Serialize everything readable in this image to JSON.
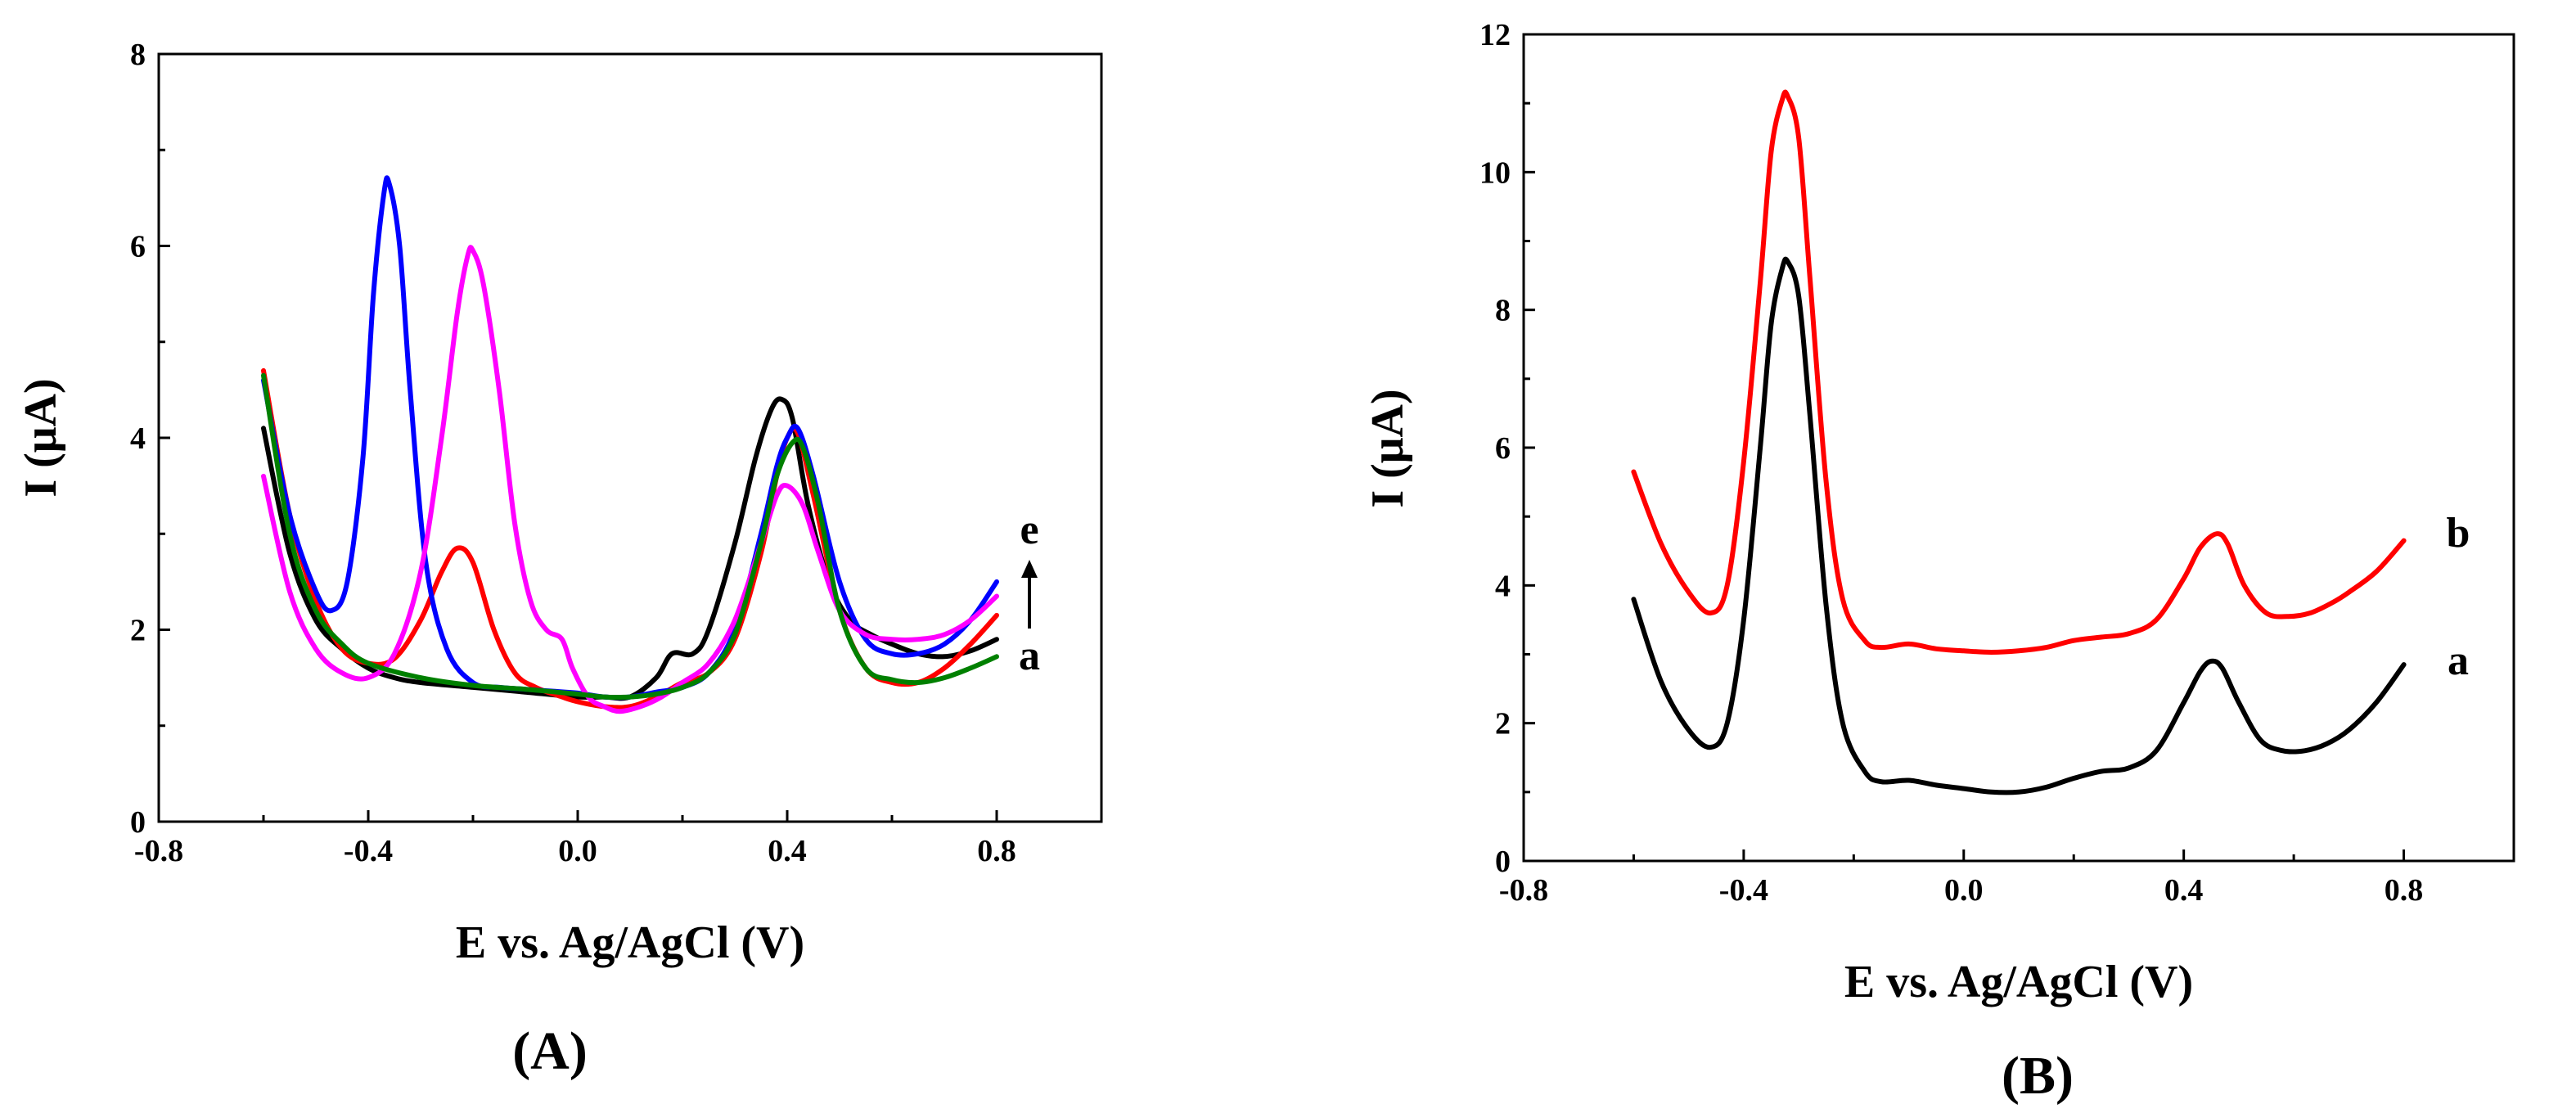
{
  "chart_data": [
    {
      "type": "line",
      "panel_label": "(A)",
      "xlabel": "E vs. Ag/AgCl (V)",
      "ylabel": "I (μA)",
      "xlim": [
        -0.8,
        1.0
      ],
      "ylim": [
        0,
        8
      ],
      "xticks": [
        -0.8,
        -0.4,
        0.0,
        0.4,
        0.8
      ],
      "xtick_labels": [
        "-0.8",
        "-0.4",
        "0.0",
        "0.4",
        "0.8"
      ],
      "yticks": [
        0,
        2,
        4,
        6,
        8
      ],
      "ytick_labels": [
        "0",
        "2",
        "4",
        "6",
        "8"
      ],
      "annotation": {
        "top": "e",
        "bottom": "a"
      },
      "colors": {
        "black": "#000000",
        "red": "#ff0000",
        "blue": "#0000ff",
        "magenta": "#ff00ff",
        "green": "#008000"
      },
      "series": [
        {
          "name": "black",
          "color": "#000000",
          "x": [
            -0.6,
            -0.55,
            -0.5,
            -0.45,
            -0.4,
            -0.35,
            -0.3,
            -0.2,
            -0.1,
            0.0,
            0.05,
            0.1,
            0.15,
            0.18,
            0.22,
            0.25,
            0.3,
            0.34,
            0.37,
            0.39,
            0.41,
            0.44,
            0.48,
            0.52,
            0.56,
            0.6,
            0.65,
            0.7,
            0.75,
            0.8
          ],
          "y": [
            4.1,
            2.8,
            2.1,
            1.8,
            1.6,
            1.5,
            1.45,
            1.4,
            1.35,
            1.3,
            1.3,
            1.3,
            1.5,
            1.75,
            1.75,
            2.0,
            2.9,
            3.8,
            4.3,
            4.4,
            4.2,
            3.3,
            2.5,
            2.1,
            1.95,
            1.85,
            1.75,
            1.72,
            1.78,
            1.9
          ]
        },
        {
          "name": "red",
          "color": "#ff0000",
          "x": [
            -0.6,
            -0.55,
            -0.5,
            -0.45,
            -0.4,
            -0.35,
            -0.3,
            -0.26,
            -0.23,
            -0.2,
            -0.16,
            -0.12,
            -0.08,
            -0.03,
            0.0,
            0.05,
            0.1,
            0.15,
            0.2,
            0.25,
            0.3,
            0.35,
            0.38,
            0.4,
            0.42,
            0.45,
            0.5,
            0.55,
            0.6,
            0.65,
            0.7,
            0.75,
            0.8
          ],
          "y": [
            4.7,
            3.2,
            2.3,
            1.8,
            1.65,
            1.7,
            2.1,
            2.6,
            2.85,
            2.7,
            2.0,
            1.55,
            1.4,
            1.3,
            1.25,
            1.2,
            1.2,
            1.3,
            1.45,
            1.55,
            1.9,
            2.8,
            3.6,
            4.0,
            4.05,
            3.4,
            2.2,
            1.6,
            1.45,
            1.45,
            1.6,
            1.85,
            2.15
          ]
        },
        {
          "name": "blue",
          "color": "#0000ff",
          "x": [
            -0.6,
            -0.55,
            -0.5,
            -0.47,
            -0.44,
            -0.41,
            -0.39,
            -0.37,
            -0.36,
            -0.34,
            -0.32,
            -0.29,
            -0.25,
            -0.2,
            -0.15,
            -0.1,
            -0.05,
            0.0,
            0.05,
            0.1,
            0.15,
            0.2,
            0.25,
            0.3,
            0.35,
            0.38,
            0.4,
            0.42,
            0.45,
            0.5,
            0.55,
            0.6,
            0.65,
            0.7,
            0.75,
            0.8
          ],
          "y": [
            4.6,
            3.2,
            2.4,
            2.2,
            2.5,
            3.8,
            5.5,
            6.55,
            6.65,
            6.0,
            4.5,
            2.7,
            1.8,
            1.45,
            1.4,
            1.38,
            1.36,
            1.34,
            1.3,
            1.3,
            1.35,
            1.4,
            1.55,
            2.0,
            3.0,
            3.7,
            4.0,
            4.1,
            3.6,
            2.5,
            1.9,
            1.75,
            1.75,
            1.85,
            2.1,
            2.5
          ]
        },
        {
          "name": "magenta",
          "color": "#ff00ff",
          "x": [
            -0.6,
            -0.55,
            -0.5,
            -0.45,
            -0.4,
            -0.35,
            -0.3,
            -0.26,
            -0.23,
            -0.21,
            -0.2,
            -0.18,
            -0.15,
            -0.12,
            -0.09,
            -0.06,
            -0.03,
            -0.01,
            0.02,
            0.05,
            0.08,
            0.12,
            0.16,
            0.2,
            0.25,
            0.3,
            0.35,
            0.38,
            0.4,
            0.43,
            0.46,
            0.5,
            0.55,
            0.6,
            0.65,
            0.7,
            0.75,
            0.8
          ],
          "y": [
            3.6,
            2.4,
            1.8,
            1.55,
            1.5,
            1.75,
            2.6,
            4.0,
            5.3,
            5.9,
            5.95,
            5.6,
            4.5,
            3.1,
            2.3,
            2.0,
            1.9,
            1.6,
            1.3,
            1.2,
            1.15,
            1.2,
            1.3,
            1.45,
            1.65,
            2.1,
            2.9,
            3.4,
            3.5,
            3.3,
            2.8,
            2.2,
            1.95,
            1.9,
            1.9,
            1.95,
            2.1,
            2.35
          ]
        },
        {
          "name": "green",
          "color": "#008000",
          "x": [
            -0.6,
            -0.55,
            -0.5,
            -0.45,
            -0.4,
            -0.3,
            -0.2,
            -0.1,
            0.0,
            0.05,
            0.1,
            0.15,
            0.2,
            0.25,
            0.3,
            0.35,
            0.38,
            0.41,
            0.43,
            0.46,
            0.5,
            0.55,
            0.6,
            0.65,
            0.7,
            0.75,
            0.8
          ],
          "y": [
            4.65,
            3.0,
            2.2,
            1.85,
            1.65,
            1.5,
            1.42,
            1.38,
            1.33,
            1.3,
            1.3,
            1.33,
            1.4,
            1.55,
            1.95,
            2.9,
            3.6,
            3.95,
            3.9,
            3.3,
            2.2,
            1.6,
            1.48,
            1.45,
            1.5,
            1.6,
            1.72
          ]
        }
      ]
    },
    {
      "type": "line",
      "panel_label": "(B)",
      "xlabel": "E vs. Ag/AgCl (V)",
      "ylabel": "I (μA)",
      "xlim": [
        -0.8,
        1.0
      ],
      "ylim": [
        0,
        12
      ],
      "xticks": [
        -0.8,
        -0.4,
        0.0,
        0.4,
        0.8
      ],
      "xtick_labels": [
        "-0.8",
        "-0.4",
        "0.0",
        "0.4",
        "0.8"
      ],
      "yticks": [
        0,
        2,
        4,
        6,
        8,
        10,
        12
      ],
      "ytick_labels": [
        "0",
        "2",
        "4",
        "6",
        "8",
        "10",
        "12"
      ],
      "colors": {
        "a": "#000000",
        "b": "#ff0000"
      },
      "series": [
        {
          "name": "a",
          "color": "#000000",
          "x": [
            -0.6,
            -0.55,
            -0.5,
            -0.46,
            -0.43,
            -0.4,
            -0.37,
            -0.35,
            -0.33,
            -0.32,
            -0.3,
            -0.28,
            -0.25,
            -0.22,
            -0.18,
            -0.15,
            -0.1,
            -0.05,
            0.0,
            0.05,
            0.1,
            0.15,
            0.2,
            0.25,
            0.3,
            0.35,
            0.4,
            0.43,
            0.45,
            0.47,
            0.5,
            0.54,
            0.58,
            0.62,
            0.66,
            0.7,
            0.75,
            0.8
          ],
          "y": [
            3.8,
            2.6,
            1.9,
            1.65,
            2.0,
            3.5,
            6.0,
            7.8,
            8.6,
            8.7,
            8.2,
            6.5,
            3.7,
            2.0,
            1.3,
            1.15,
            1.17,
            1.1,
            1.05,
            1.0,
            1.0,
            1.07,
            1.2,
            1.3,
            1.35,
            1.6,
            2.3,
            2.75,
            2.9,
            2.8,
            2.3,
            1.75,
            1.6,
            1.6,
            1.7,
            1.9,
            2.3,
            2.85
          ]
        },
        {
          "name": "b",
          "color": "#ff0000",
          "x": [
            -0.6,
            -0.55,
            -0.5,
            -0.46,
            -0.43,
            -0.4,
            -0.37,
            -0.35,
            -0.33,
            -0.32,
            -0.3,
            -0.28,
            -0.25,
            -0.22,
            -0.18,
            -0.15,
            -0.1,
            -0.05,
            0.0,
            0.05,
            0.1,
            0.15,
            0.2,
            0.25,
            0.3,
            0.35,
            0.4,
            0.43,
            0.46,
            0.48,
            0.51,
            0.55,
            0.59,
            0.63,
            0.67,
            0.7,
            0.75,
            0.8
          ],
          "y": [
            5.65,
            4.6,
            3.9,
            3.6,
            4.0,
            5.8,
            8.4,
            10.3,
            11.05,
            11.1,
            10.5,
            8.5,
            5.5,
            3.8,
            3.2,
            3.1,
            3.15,
            3.08,
            3.05,
            3.03,
            3.05,
            3.1,
            3.2,
            3.25,
            3.3,
            3.5,
            4.1,
            4.55,
            4.75,
            4.6,
            4.0,
            3.6,
            3.55,
            3.6,
            3.75,
            3.9,
            4.2,
            4.65
          ]
        }
      ]
    }
  ]
}
